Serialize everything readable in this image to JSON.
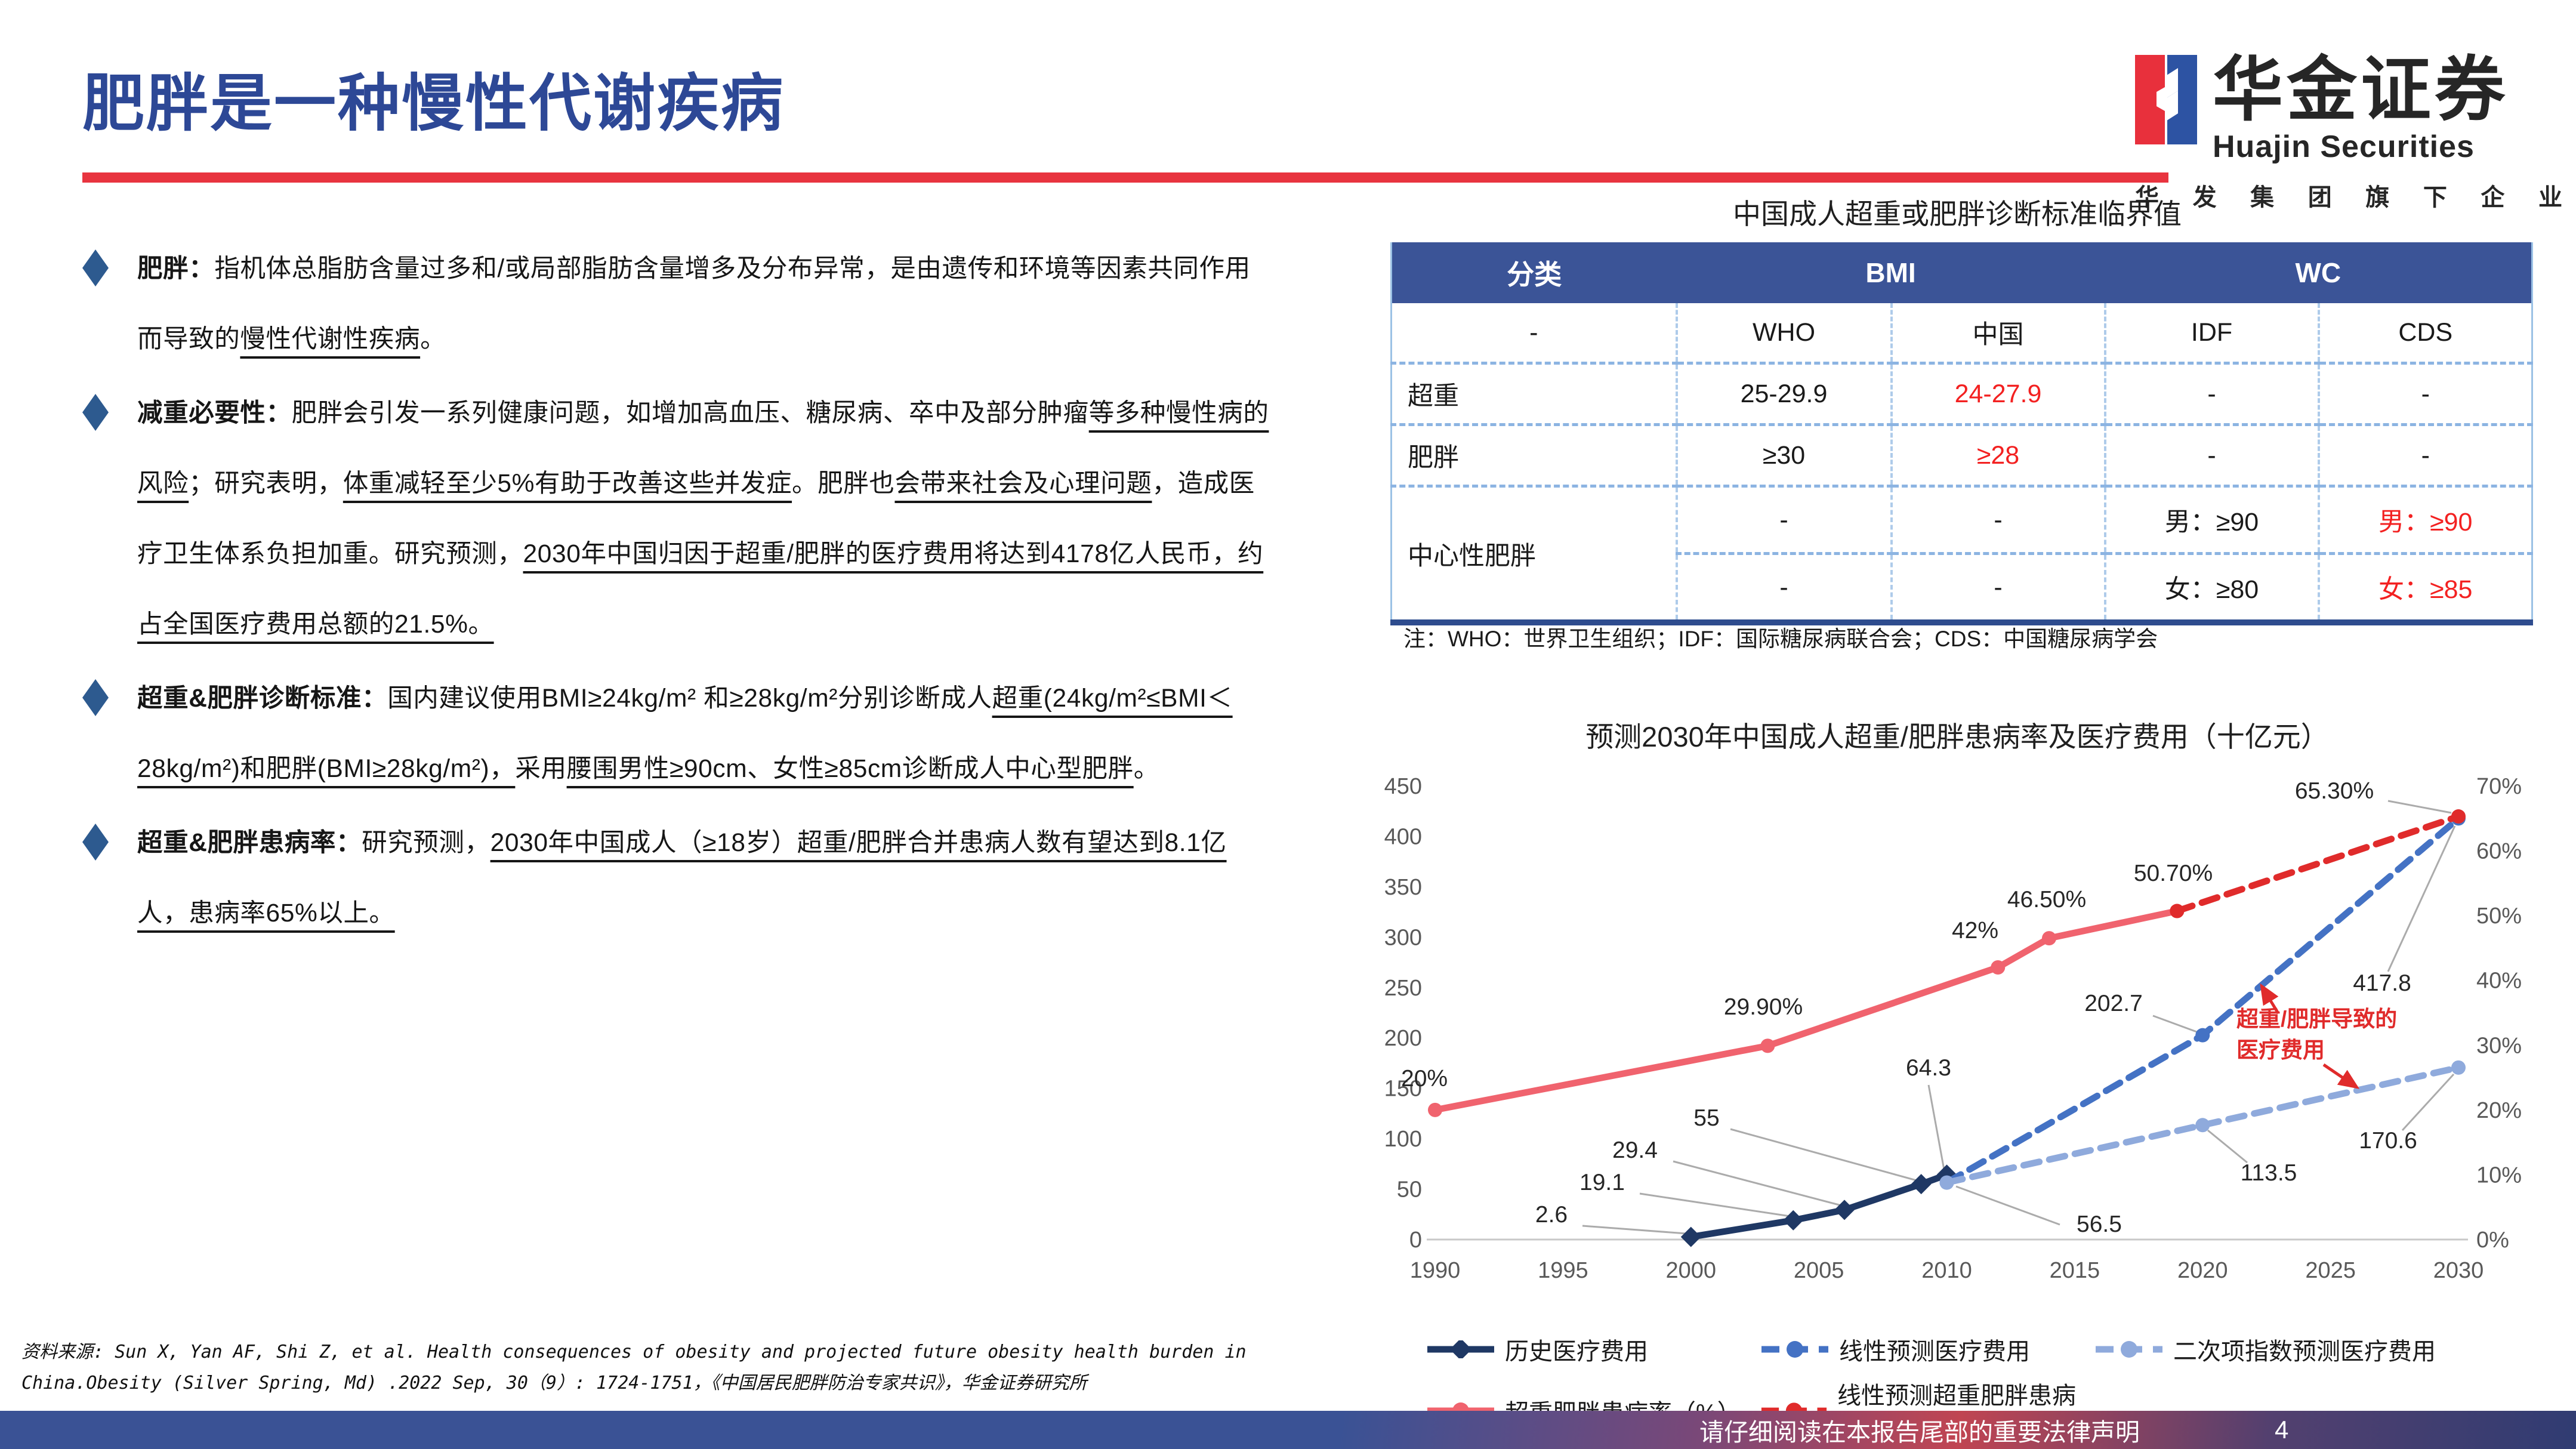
{
  "page": {
    "title": "肥胖是一种慢性代谢疾病"
  },
  "logo": {
    "name_cn": "华金证券",
    "name_en": "Huajin Securities",
    "tagline": "华发集团旗下企业"
  },
  "colors": {
    "title_blue": "#2D4896",
    "accent_red": "#E8343F",
    "table_header_bg": "#3B5497",
    "table_red": "#F32121",
    "footer_blue": "#3A5295"
  },
  "bullets": [
    {
      "segments": [
        {
          "t": "肥胖：",
          "b": true
        },
        {
          "t": "指机体总脂肪含量过多和/或局部脂肪含量增多及分布异常，是由遗传和环境等因素共同作用而导致的"
        },
        {
          "t": "慢性代谢性疾病",
          "u": true
        },
        {
          "t": "。"
        }
      ]
    },
    {
      "segments": [
        {
          "t": "减重必要性：",
          "b": true
        },
        {
          "t": "肥胖会引发一系列健康问题，如增加高血压、糖尿病、卒中及部分肿瘤"
        },
        {
          "t": "等多种慢性病的风险",
          "u": true
        },
        {
          "t": "；研究表明，"
        },
        {
          "t": "体重减轻至少5%有助于改善这些并发症",
          "u": true
        },
        {
          "t": "。肥胖也"
        },
        {
          "t": "会带来社会及心理问题",
          "u": true
        },
        {
          "t": "，造成医疗卫生体系负担加重。研究预测，"
        },
        {
          "t": "2030年中国归因于超重/肥胖的医疗费用将达到4178亿人民币，约占全国医疗费用总额的21.5%。",
          "u": true
        }
      ]
    },
    {
      "segments": [
        {
          "t": "超重&肥胖诊断标准：",
          "b": true
        },
        {
          "t": "国内建议使用BMI≥24kg/m² 和≥28kg/m²分别诊断成人"
        },
        {
          "t": "超重(24kg/m²≤BMI＜28kg/m²)和肥胖(BMI≥28kg/m²)，",
          "u": true
        },
        {
          "t": "采用"
        },
        {
          "t": "腰围男性≥90cm、女性≥85cm诊断成人中心型肥胖",
          "u": true
        },
        {
          "t": "。"
        }
      ]
    },
    {
      "segments": [
        {
          "t": "超重&肥胖患病率：",
          "b": true
        },
        {
          "t": "研究预测，"
        },
        {
          "t": "2030年中国成人（≥18岁）超重/肥胖合并患病人数有望达到8.1亿人，患病率65%以上。",
          "u": true
        }
      ]
    }
  ],
  "table": {
    "title": "中国成人超重或肥胖诊断标准临界值",
    "header": {
      "c0": "分类",
      "c1": "BMI",
      "c2": "WC"
    },
    "sub": [
      "-",
      "WHO",
      "中国",
      "IDF",
      "CDS"
    ],
    "row_overweight": [
      "超重",
      "25-29.9",
      "24-27.9",
      "-",
      "-"
    ],
    "row_obese": [
      "肥胖",
      "≥30",
      "≥28",
      "-",
      "-"
    ],
    "row_central_label": "中心性肥胖",
    "row_central_male": [
      "-",
      "-",
      "男：≥90",
      "男：≥90"
    ],
    "row_central_female": [
      "-",
      "-",
      "女：≥80",
      "女：≥85"
    ],
    "note": "注：WHO：世界卫生组织；IDF：国际糖尿病联合会；CDS：中国糖尿病学会"
  },
  "chart_data": {
    "type": "line",
    "title": "预测2030年中国成人超重/肥胖患病率及医疗费用（十亿元）",
    "x_ticks": [
      1990,
      1995,
      2000,
      2005,
      2010,
      2015,
      2020,
      2025,
      2030
    ],
    "y_left": {
      "min": 0,
      "max": 450,
      "step": 50
    },
    "y_right": {
      "min": 0,
      "max": 70,
      "step": 10,
      "suffix": "%"
    },
    "grid": false,
    "legend_position": "bottom",
    "series": [
      {
        "name": "历史医疗费用",
        "axis": "left",
        "style": "solid",
        "marker": "diamond",
        "color": "#1F3864",
        "points": [
          [
            2000,
            2.6
          ],
          [
            2004,
            19.1
          ],
          [
            2006,
            29.4
          ],
          [
            2009,
            55
          ],
          [
            2010,
            64.3
          ]
        ]
      },
      {
        "name": "线性预测医疗费用",
        "axis": "left",
        "style": "dashed",
        "marker": "circle",
        "color": "#4472C4",
        "points": [
          [
            2010,
            56.5
          ],
          [
            2020,
            202.7
          ],
          [
            2030,
            417.8
          ]
        ]
      },
      {
        "name": "二次项指数预测医疗费用",
        "axis": "left",
        "style": "dashed",
        "marker": "circle",
        "color": "#8FAADC",
        "points": [
          [
            2010,
            56.5
          ],
          [
            2020,
            113.5
          ],
          [
            2030,
            170.6
          ]
        ]
      },
      {
        "name": "超重肥胖患病率（%）",
        "axis": "right",
        "style": "solid",
        "marker": "circle",
        "color": "#F0636E",
        "points": [
          [
            1990,
            20
          ],
          [
            2003,
            29.9
          ],
          [
            2012,
            42
          ],
          [
            2014,
            46.5
          ],
          [
            2019,
            50.7
          ]
        ]
      },
      {
        "name": "线性预测超重肥胖患病率",
        "axis": "right",
        "style": "dashed",
        "marker": "circle",
        "color": "#E02B2B",
        "points": [
          [
            2019,
            50.7
          ],
          [
            2030,
            65.3
          ]
        ]
      }
    ],
    "labels": [
      {
        "t": "20%",
        "x": 48,
        "y": 548,
        "a": "start"
      },
      {
        "t": "29.90%",
        "x": 655,
        "y": 428,
        "a": "middle"
      },
      {
        "t": "42%",
        "x": 1010,
        "y": 300,
        "a": "middle"
      },
      {
        "t": "46.50%",
        "x": 1130,
        "y": 248,
        "a": "middle"
      },
      {
        "t": "50.70%",
        "x": 1342,
        "y": 204,
        "a": "middle"
      },
      {
        "t": "65.30%",
        "x": 1612,
        "y": 66,
        "a": "middle",
        "ld": [
          1702,
          70,
          1808,
          90
        ]
      },
      {
        "t": "2.6",
        "x": 300,
        "y": 776,
        "a": "middle",
        "ld": [
          352,
          782,
          526,
          795
        ]
      },
      {
        "t": "19.1",
        "x": 385,
        "y": 722,
        "a": "middle",
        "ld": [
          448,
          728,
          700,
          766
        ]
      },
      {
        "t": "29.4",
        "x": 440,
        "y": 668,
        "a": "middle",
        "ld": [
          504,
          674,
          786,
          748
        ]
      },
      {
        "t": "55",
        "x": 560,
        "y": 614,
        "a": "middle",
        "ld": [
          600,
          620,
          912,
          706
        ]
      },
      {
        "t": "64.3",
        "x": 932,
        "y": 530,
        "a": "middle",
        "ld": [
          932,
          546,
          958,
          688
        ]
      },
      {
        "t": "56.5",
        "x": 1218,
        "y": 792,
        "a": "middle",
        "ld": [
          1152,
          780,
          978,
          716
        ]
      },
      {
        "t": "202.7",
        "x": 1242,
        "y": 422,
        "a": "middle",
        "ld": [
          1308,
          430,
          1384,
          458
        ]
      },
      {
        "t": "417.8",
        "x": 1692,
        "y": 388,
        "a": "middle",
        "ld": [
          1702,
          356,
          1814,
          112
        ]
      },
      {
        "t": "113.5",
        "x": 1502,
        "y": 706,
        "a": "middle",
        "ld": [
          1466,
          676,
          1400,
          622
        ]
      },
      {
        "t": "170.6",
        "x": 1702,
        "y": 652,
        "a": "middle",
        "ld": [
          1726,
          622,
          1812,
          528
        ]
      }
    ],
    "annotation": {
      "lines": [
        "超重/肥胖导致的",
        "医疗费用"
      ],
      "x": 1448,
      "y": 448,
      "line_height": 52,
      "color": "#E02B2B",
      "arrows": [
        [
          1518,
          426,
          1490,
          380
        ],
        [
          1594,
          512,
          1650,
          550
        ]
      ]
    }
  },
  "source": {
    "line1": "资料来源: Sun X, Yan AF, Shi Z, et al. Health consequences of obesity and projected future obesity health burden in",
    "line2": "China.Obesity (Silver Spring, Md) .2022 Sep, 30（9）: 1724-1751，《中国居民肥胖防治专家共识》，华金证券研究所"
  },
  "footer": {
    "disclaimer": "请仔细阅读在本报告尾部的重要法律声明",
    "page_number": "4"
  }
}
